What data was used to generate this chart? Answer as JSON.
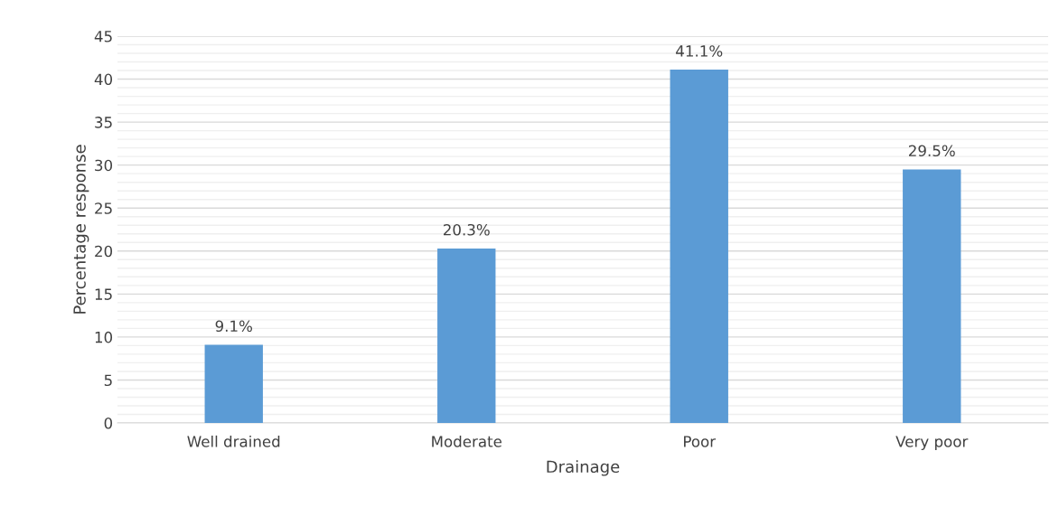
{
  "chart_data": {
    "type": "bar",
    "xlabel": "Drainage",
    "ylabel": "Percentage response",
    "categories": [
      "Well drained",
      "Moderate",
      "Poor",
      "Very poor"
    ],
    "values": [
      9.1,
      20.3,
      41.1,
      29.5
    ],
    "value_labels": [
      "9.1%",
      "20.3%",
      "41.1%",
      "29.5%"
    ],
    "color": "#5b9bd5",
    "ylim": [
      0,
      45
    ],
    "yticks": [
      0,
      {
        "value": 1,
        "label": null
      },
      {
        "value": 2,
        "label": null
      },
      {
        "value": 3,
        "label": null
      },
      {
        "value": 4,
        "label": null
      },
      5,
      {
        "value": 6,
        "label": null
      },
      {
        "value": 7,
        "label": null
      },
      {
        "value": 8,
        "label": null
      },
      {
        "value": 9,
        "label": null
      },
      10,
      {
        "value": 11,
        "label": null
      },
      {
        "value": 12,
        "label": null
      },
      {
        "value": 13,
        "label": null
      },
      {
        "value": 14,
        "label": null
      },
      15,
      {
        "value": 16,
        "label": null
      },
      {
        "value": 17,
        "label": null
      },
      {
        "value": 18,
        "label": null
      },
      {
        "value": 19,
        "label": null
      },
      20,
      {
        "value": 21,
        "label": null
      },
      {
        "value": 22,
        "label": null
      },
      {
        "value": 23,
        "label": null
      },
      {
        "value": 24,
        "label": null
      },
      25,
      {
        "value": 26,
        "label": null
      },
      {
        "value": 27,
        "label": null
      },
      {
        "value": 28,
        "label": null
      },
      {
        "value": 29,
        "label": null
      },
      30,
      {
        "value": 31,
        "label": null
      },
      {
        "value": 32,
        "label": null
      },
      {
        "value": 33,
        "label": null
      },
      {
        "value": 34,
        "label": null
      },
      35,
      {
        "value": 36,
        "label": null
      },
      {
        "value": 37,
        "label": null
      },
      {
        "value": 38,
        "label": null
      },
      {
        "value": 39,
        "label": null
      },
      40,
      {
        "value": 41,
        "label": null
      },
      {
        "value": 42,
        "label": null
      },
      {
        "value": 43,
        "label": null
      },
      {
        "value": 44,
        "label": null
      },
      45
    ],
    "grid": "y",
    "legend": false
  }
}
